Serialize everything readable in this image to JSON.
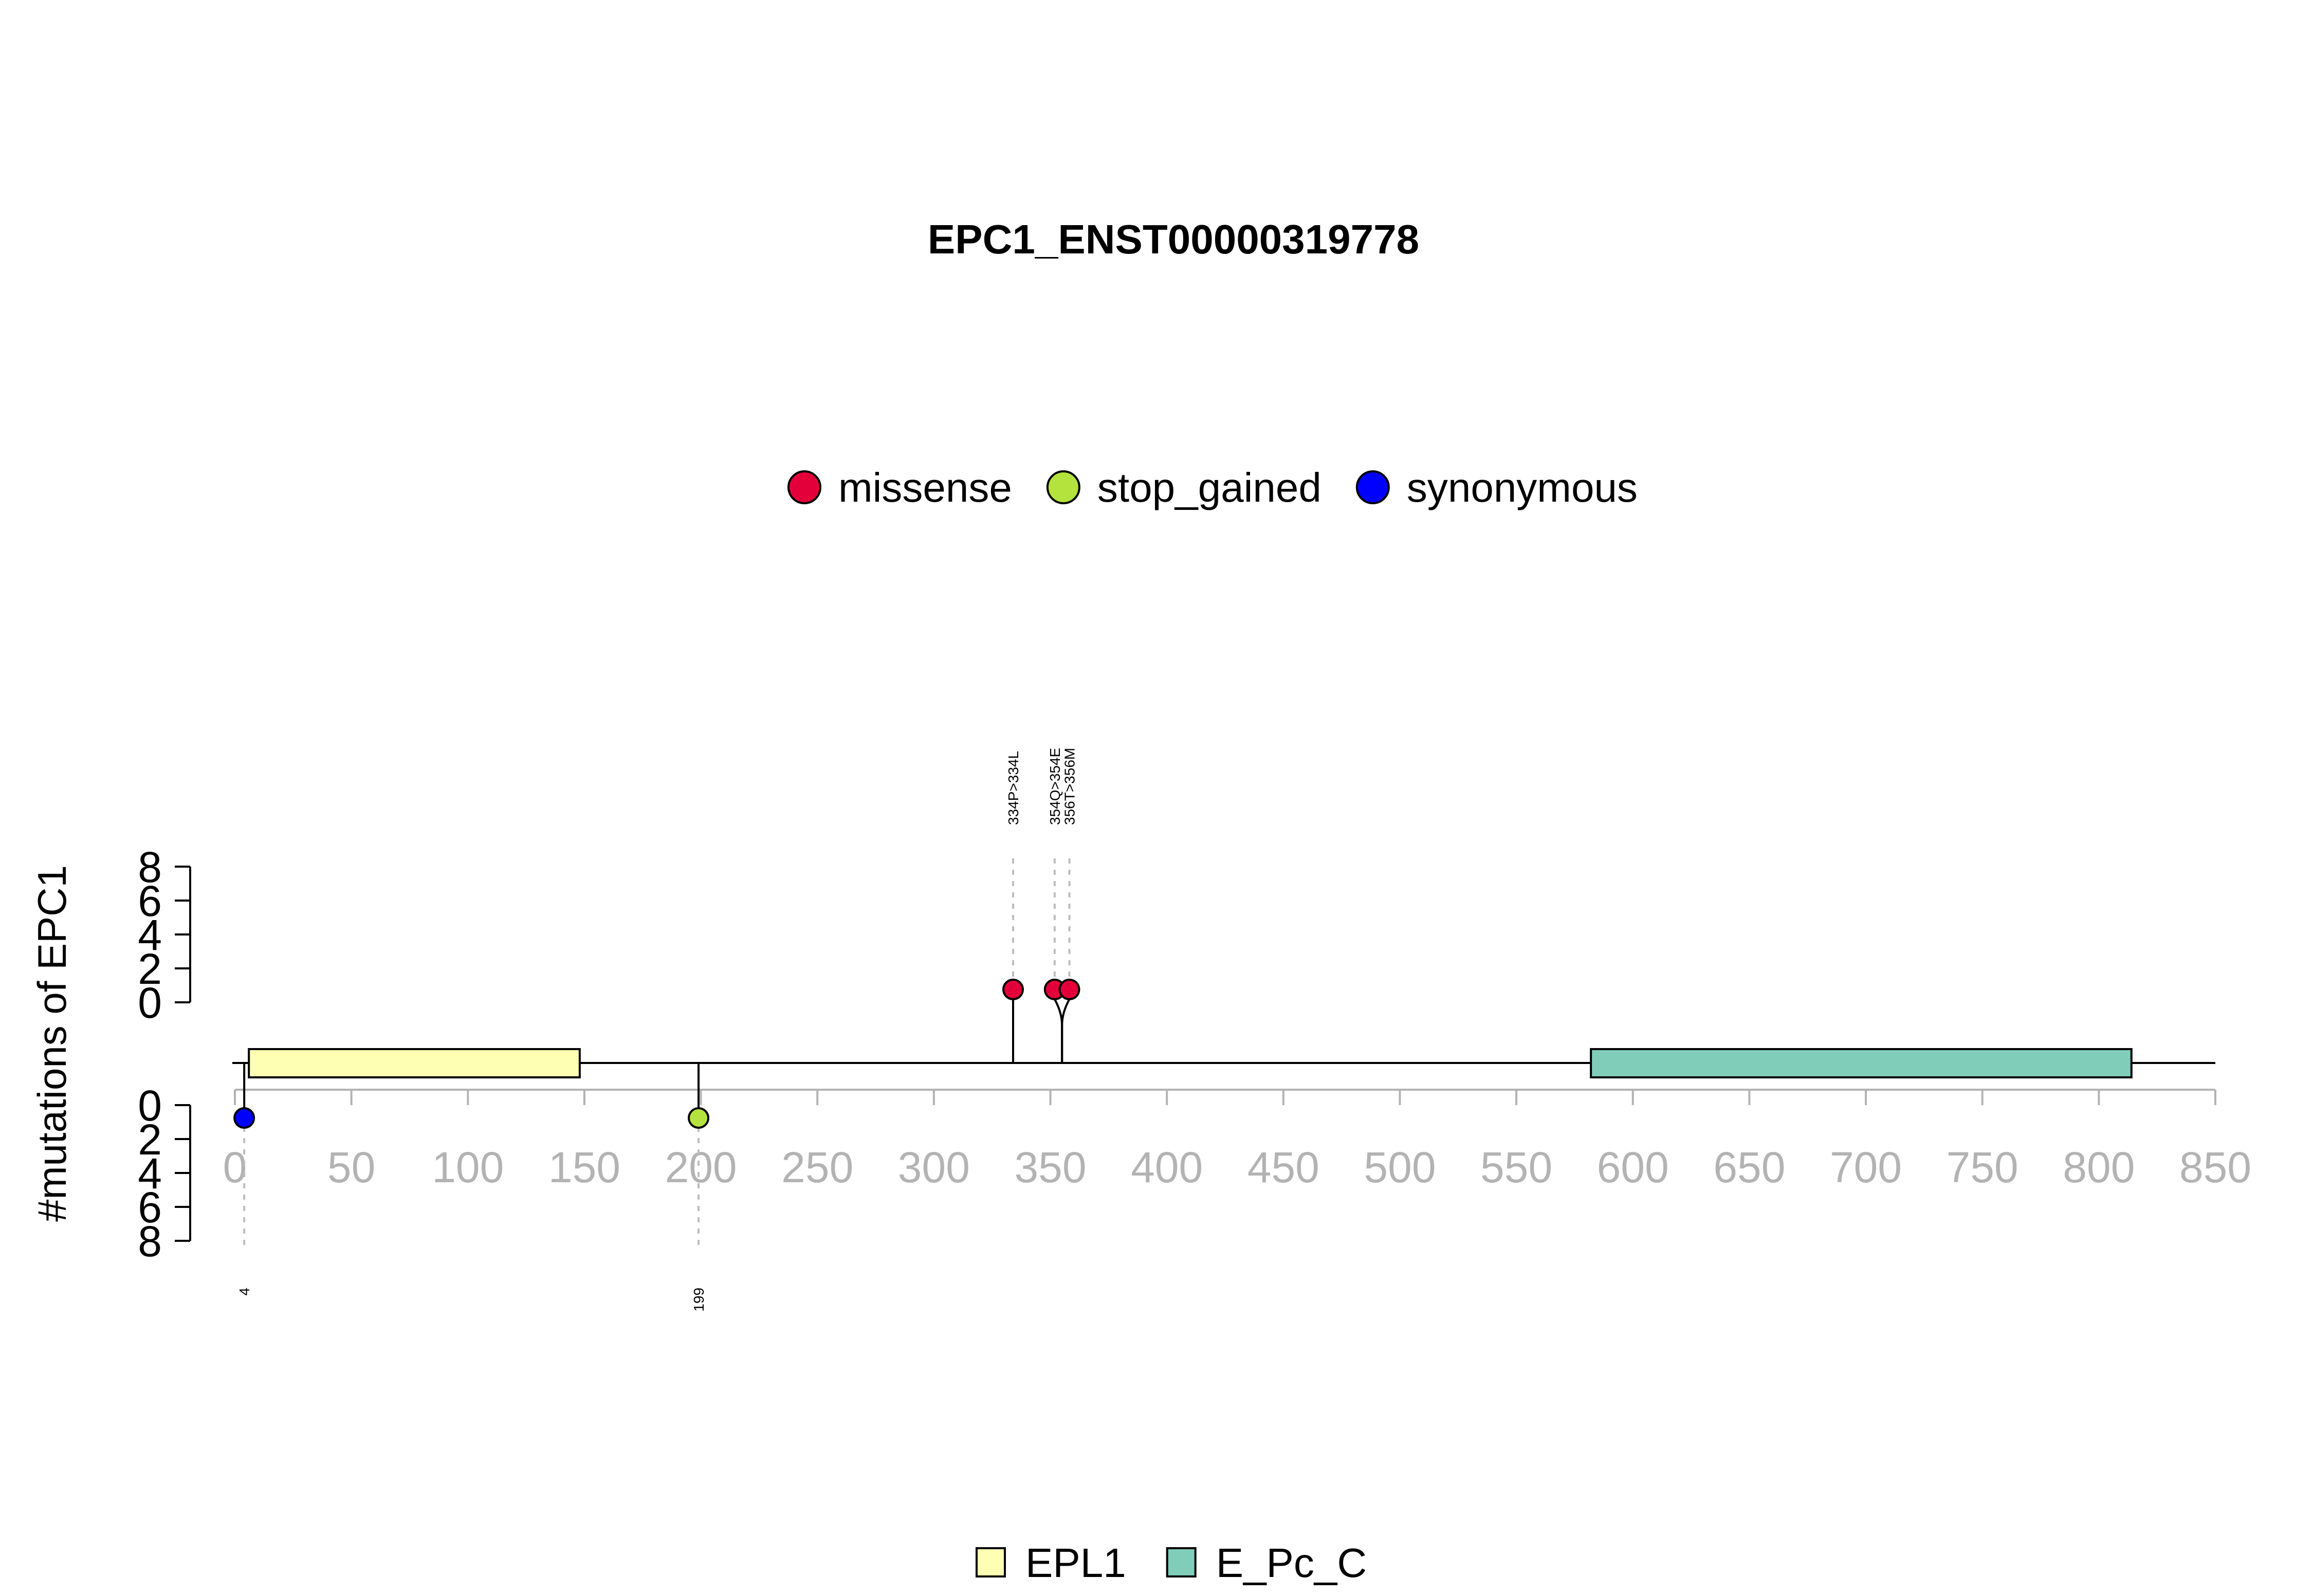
{
  "chart_data": {
    "type": "lollipop",
    "title": "EPC1_ENST00000319778",
    "ylabel": "#mutations of EPC1",
    "protein_length": 850,
    "xlim": [
      0,
      850
    ],
    "x_ticks": [
      0,
      50,
      100,
      150,
      200,
      250,
      300,
      350,
      400,
      450,
      500,
      550,
      600,
      650,
      700,
      750,
      800,
      850
    ],
    "y_ticks_upper": [
      0,
      2,
      4,
      6,
      8
    ],
    "y_ticks_lower": [
      0,
      2,
      4,
      6,
      8
    ],
    "mutation_types": [
      {
        "name": "missense",
        "color": "#E3003A"
      },
      {
        "name": "stop_gained",
        "color": "#B4E33D"
      },
      {
        "name": "synonymous",
        "color": "#0000FF"
      }
    ],
    "domains": [
      {
        "name": "EPL1",
        "start": 6,
        "end": 148,
        "color": "#FFFFB3"
      },
      {
        "name": "E_Pc_C",
        "start": 582,
        "end": 814,
        "color": "#80CDBA"
      }
    ],
    "mutations": [
      {
        "position": 334,
        "label": "334P>334L",
        "type": "missense",
        "count": 1,
        "strand": "upper"
      },
      {
        "position": 354,
        "label": "354Q>354E",
        "type": "missense",
        "count": 1,
        "strand": "upper"
      },
      {
        "position": 356,
        "label": "356T>356M",
        "type": "missense",
        "count": 1,
        "strand": "upper"
      },
      {
        "position": 4,
        "label": "4",
        "type": "synonymous",
        "count": 1,
        "strand": "lower"
      },
      {
        "position": 199,
        "label": "199",
        "type": "stop_gained",
        "count": 1,
        "strand": "lower"
      }
    ]
  }
}
